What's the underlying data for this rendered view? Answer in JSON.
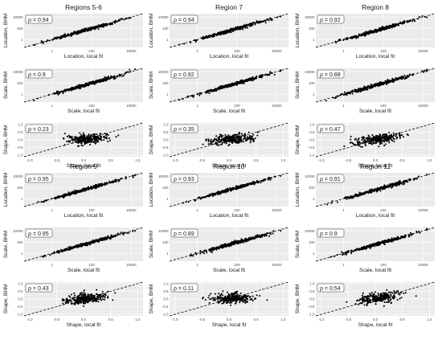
{
  "figure": {
    "colors": {
      "panel_bg": "#ebebeb",
      "grid": "#ffffff",
      "point": "#000000",
      "ref_line": "#000000",
      "text": "#1a1a1a",
      "tick": "#4d4d4d"
    }
  },
  "chart_data": {
    "type": "scatter",
    "reference_line": "y = x (dashed)",
    "grid": true,
    "variables": {
      "location": {
        "xlabel": "Location, local fit",
        "ylabel": "Location, BHM",
        "scale": "log10",
        "xticks": [
          "1",
          "100",
          "10000"
        ],
        "yticks": [
          "10000",
          "100",
          "1"
        ]
      },
      "scale": {
        "xlabel": "Scale, local fit",
        "ylabel": "Scale, BHM",
        "scale": "log10",
        "xticks": [
          "1",
          "100",
          "10000"
        ],
        "yticks": [
          "10000",
          "100",
          "1"
        ]
      },
      "shape": {
        "xlabel": "Shape, local fit",
        "ylabel": "Shape, BHM",
        "scale": "linear",
        "xticks": [
          "-1.0",
          "-0.5",
          "0.0",
          "0.5",
          "1.0"
        ],
        "yticks": [
          "1.0",
          "0.5",
          "0.0",
          "-0.5",
          "-1.0"
        ]
      }
    },
    "regions": [
      {
        "title": "Regions 5-6",
        "rho": {
          "location": "ρ = 0.94",
          "scale": "ρ = 0.9",
          "shape": "ρ = 0.23"
        }
      },
      {
        "title": "Region 7",
        "rho": {
          "location": "ρ = 0.94",
          "scale": "ρ = 0.92",
          "shape": "ρ = 0.35"
        }
      },
      {
        "title": "Region 8",
        "rho": {
          "location": "ρ = 0.92",
          "scale": "ρ = 0.88",
          "shape": "ρ = 0.47"
        }
      },
      {
        "title": "Region 9",
        "rho": {
          "location": "ρ = 0.95",
          "scale": "ρ = 0.95",
          "shape": "ρ = 0.43"
        }
      },
      {
        "title": "Region 10",
        "rho": {
          "location": "ρ = 0.93",
          "scale": "ρ = 0.89",
          "shape": "ρ = 0.11"
        }
      },
      {
        "title": "Region 11",
        "rho": {
          "location": "ρ = 0.91",
          "scale": "ρ = 0.9",
          "shape": "ρ = 0.54"
        }
      }
    ]
  }
}
